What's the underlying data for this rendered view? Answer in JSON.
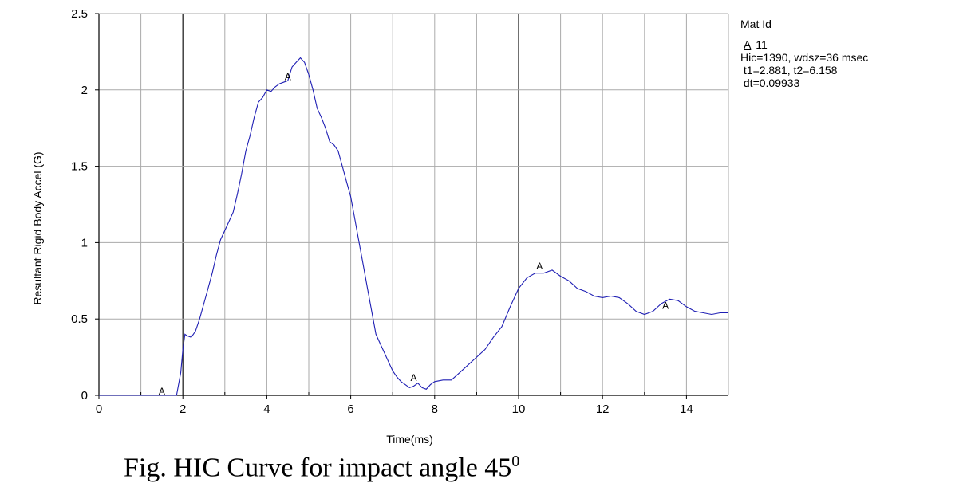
{
  "chart_data": {
    "type": "line",
    "xlabel": "Time(ms)",
    "ylabel": "Resultant Rigid Body Accel (G)",
    "xlim": [
      0,
      15
    ],
    "ylim": [
      0,
      2.5
    ],
    "x_ticks": [
      "0",
      "2",
      "4",
      "6",
      "8",
      "10",
      "12",
      "14"
    ],
    "y_ticks": [
      "0",
      "0.5",
      "1",
      "1.5",
      "2",
      "2.5"
    ],
    "grid": true,
    "legend_position": "right",
    "series": [
      {
        "name": "11",
        "marker": "A",
        "color": "#1f1fb4",
        "x": [
          0,
          0.5,
          1.0,
          1.5,
          1.85,
          1.95,
          2.0,
          2.05,
          2.1,
          2.2,
          2.3,
          2.4,
          2.5,
          2.6,
          2.7,
          2.8,
          2.9,
          3.0,
          3.1,
          3.2,
          3.3,
          3.4,
          3.5,
          3.6,
          3.7,
          3.8,
          3.9,
          4.0,
          4.1,
          4.2,
          4.3,
          4.4,
          4.5,
          4.6,
          4.7,
          4.8,
          4.9,
          5.0,
          5.1,
          5.2,
          5.3,
          5.4,
          5.5,
          5.6,
          5.7,
          5.8,
          5.9,
          6.0,
          6.1,
          6.2,
          6.3,
          6.4,
          6.5,
          6.6,
          6.7,
          6.8,
          6.9,
          7.0,
          7.1,
          7.2,
          7.3,
          7.4,
          7.5,
          7.6,
          7.7,
          7.8,
          7.9,
          8.0,
          8.2,
          8.4,
          8.6,
          8.8,
          9.0,
          9.2,
          9.4,
          9.6,
          9.8,
          10.0,
          10.2,
          10.4,
          10.6,
          10.8,
          11.0,
          11.2,
          11.4,
          11.6,
          11.8,
          12.0,
          12.2,
          12.4,
          12.6,
          12.8,
          13.0,
          13.2,
          13.4,
          13.6,
          13.8,
          14.0,
          14.2,
          14.4,
          14.6,
          14.8,
          15.0
        ],
        "y": [
          0,
          0,
          0,
          0,
          0,
          0.15,
          0.3,
          0.4,
          0.39,
          0.38,
          0.42,
          0.5,
          0.6,
          0.7,
          0.8,
          0.92,
          1.02,
          1.08,
          1.14,
          1.2,
          1.32,
          1.45,
          1.6,
          1.7,
          1.82,
          1.92,
          1.95,
          2.0,
          1.99,
          2.02,
          2.04,
          2.05,
          2.06,
          2.15,
          2.18,
          2.21,
          2.18,
          2.1,
          2.0,
          1.88,
          1.82,
          1.75,
          1.66,
          1.64,
          1.6,
          1.5,
          1.4,
          1.3,
          1.15,
          1.0,
          0.85,
          0.7,
          0.55,
          0.4,
          0.34,
          0.28,
          0.22,
          0.16,
          0.12,
          0.09,
          0.07,
          0.05,
          0.06,
          0.08,
          0.05,
          0.04,
          0.07,
          0.09,
          0.1,
          0.1,
          0.15,
          0.2,
          0.25,
          0.3,
          0.38,
          0.45,
          0.58,
          0.7,
          0.77,
          0.8,
          0.8,
          0.82,
          0.78,
          0.75,
          0.7,
          0.68,
          0.65,
          0.64,
          0.65,
          0.64,
          0.6,
          0.55,
          0.53,
          0.55,
          0.6,
          0.63,
          0.62,
          0.58,
          0.55,
          0.54,
          0.53,
          0.54,
          0.54
        ]
      }
    ],
    "marker_points": [
      {
        "x": 1.5,
        "y": 0.0
      },
      {
        "x": 4.5,
        "y": 2.06
      },
      {
        "x": 7.5,
        "y": 0.09
      },
      {
        "x": 10.5,
        "y": 0.82
      },
      {
        "x": 13.5,
        "y": 0.56
      }
    ]
  },
  "legend": {
    "title": "Mat Id",
    "series_symbol": "A",
    "series_label": "11",
    "line1": "Hic=1390, wdsz=36 msec",
    "line2": " t1=2.881, t2=6.158",
    "line3": " dt=0.09933"
  },
  "caption": {
    "text": "Fig. HIC Curve for impact angle 45",
    "superscript": "0"
  }
}
